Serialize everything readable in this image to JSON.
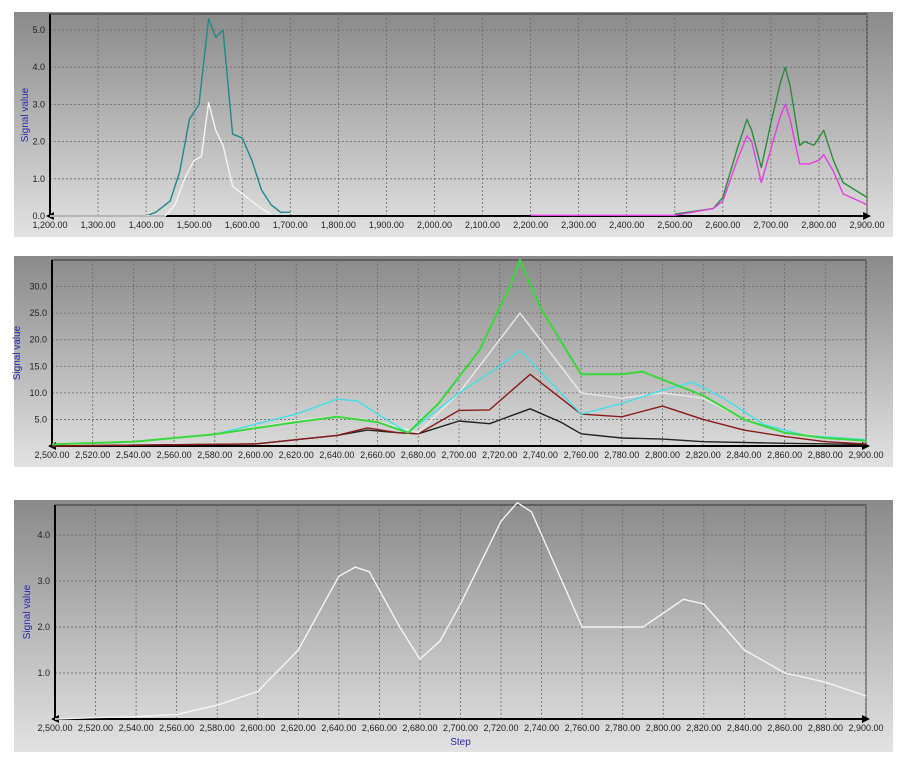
{
  "chart_data": [
    {
      "type": "line",
      "ylabel": "Signal value",
      "xlabel": "",
      "xlim": [
        1200,
        2900
      ],
      "ylim": [
        0,
        5.43
      ],
      "grid": true,
      "xticks": [
        "1,200.00",
        "1,300.00",
        "1,400.00",
        "1,500.00",
        "1,600.00",
        "1,700.00",
        "1,800.00",
        "1,900.00",
        "2,000.00",
        "2,100.00",
        "2,200.00",
        "2,300.00",
        "2,400.00",
        "2,500.00",
        "2,600.00",
        "2,700.00",
        "2,800.00",
        "2,900.00"
      ],
      "yticks": [
        "0.0",
        "1.0",
        "2.0",
        "3.0",
        "4.0",
        "5.0"
      ],
      "series": [
        {
          "color": "#1f8a8a",
          "x": [
            1400,
            1420,
            1450,
            1470,
            1490,
            1510,
            1530,
            1545,
            1560,
            1580,
            1600,
            1620,
            1640,
            1660,
            1680,
            1700
          ],
          "y": [
            0,
            0.1,
            0.4,
            1.2,
            2.6,
            3.0,
            5.3,
            4.8,
            5.0,
            2.2,
            2.1,
            1.5,
            0.7,
            0.3,
            0.1,
            0.1
          ]
        },
        {
          "color": "#f4f4f4",
          "x": [
            1200,
            1440,
            1460,
            1480,
            1500,
            1515,
            1530,
            1545,
            1560,
            1580,
            1600,
            1640,
            1660
          ],
          "y": [
            0,
            0,
            0.3,
            1.0,
            1.5,
            1.6,
            3.05,
            2.3,
            1.9,
            0.8,
            0.6,
            0.2,
            0.05
          ]
        },
        {
          "color": "#2e8b3e",
          "x": [
            2500,
            2580,
            2600,
            2630,
            2650,
            2660,
            2680,
            2700,
            2720,
            2730,
            2740,
            2760,
            2770,
            2790,
            2810,
            2830,
            2850,
            2900
          ],
          "y": [
            0.05,
            0.2,
            0.5,
            1.8,
            2.6,
            2.3,
            1.3,
            2.5,
            3.6,
            4.0,
            3.5,
            1.9,
            2.0,
            1.9,
            2.3,
            1.5,
            0.9,
            0.5
          ]
        },
        {
          "color": "#e040e0",
          "x": [
            2200,
            2500,
            2580,
            2600,
            2630,
            2650,
            2660,
            2680,
            2700,
            2720,
            2730,
            2740,
            2760,
            2780,
            2800,
            2810,
            2830,
            2850,
            2900
          ],
          "y": [
            0.02,
            0.02,
            0.2,
            0.4,
            1.5,
            2.15,
            2.0,
            0.9,
            1.8,
            2.7,
            3.0,
            2.6,
            1.4,
            1.4,
            1.5,
            1.65,
            1.2,
            0.6,
            0.3
          ]
        }
      ]
    },
    {
      "type": "line",
      "ylabel": "Signal value",
      "xlabel": "",
      "xlim": [
        2500,
        2900
      ],
      "ylim": [
        0,
        35
      ],
      "grid": true,
      "xticks": [
        "2,500.00",
        "2,520.00",
        "2,540.00",
        "2,560.00",
        "2,580.00",
        "2,600.00",
        "2,620.00",
        "2,640.00",
        "2,660.00",
        "2,680.00",
        "2,700.00",
        "2,720.00",
        "2,740.00",
        "2,760.00",
        "2,780.00",
        "2,800.00",
        "2,820.00",
        "2,840.00",
        "2,860.00",
        "2,880.00",
        "2,900.00"
      ],
      "yticks": [
        "5.0",
        "10.0",
        "15.0",
        "20.0",
        "25.0",
        "30.0"
      ],
      "series": [
        {
          "color": "#222222",
          "x": [
            2500,
            2600,
            2640,
            2655,
            2670,
            2680,
            2700,
            2715,
            2735,
            2750,
            2760,
            2780,
            2800,
            2820,
            2860,
            2900
          ],
          "y": [
            0,
            0.4,
            2,
            3,
            2.5,
            2.3,
            4.7,
            4.2,
            7,
            4.5,
            2.3,
            1.5,
            1.3,
            0.8,
            0.5,
            0.3
          ]
        },
        {
          "color": "#8b1a1a",
          "x": [
            2500,
            2600,
            2640,
            2655,
            2670,
            2680,
            2700,
            2715,
            2735,
            2750,
            2760,
            2780,
            2800,
            2820,
            2840,
            2860,
            2880,
            2900
          ],
          "y": [
            0,
            0.4,
            2,
            3.4,
            2.5,
            2.3,
            6.7,
            6.8,
            13.5,
            9,
            6,
            5.5,
            7.5,
            5,
            3,
            1.8,
            0.8,
            0.4
          ]
        },
        {
          "color": "#e8e8e8",
          "x": [
            2500,
            2540,
            2580,
            2620,
            2640,
            2660,
            2680,
            2700,
            2720,
            2730,
            2740,
            2760,
            2780,
            2800,
            2820,
            2840,
            2860,
            2900
          ],
          "y": [
            0.3,
            0.8,
            2.2,
            4.8,
            5.6,
            4.6,
            2.5,
            10,
            20,
            25,
            20,
            10,
            9,
            10,
            9,
            5,
            2.5,
            1
          ]
        },
        {
          "color": "#40e0e8",
          "x": [
            2500,
            2540,
            2580,
            2620,
            2640,
            2650,
            2660,
            2675,
            2700,
            2720,
            2730,
            2740,
            2760,
            2780,
            2800,
            2815,
            2830,
            2850,
            2870,
            2900
          ],
          "y": [
            0.3,
            0.8,
            2.2,
            6,
            8.8,
            8.5,
            6,
            2.5,
            10,
            15,
            18,
            14,
            6,
            8,
            10.5,
            12,
            9,
            4,
            2,
            1.2
          ]
        },
        {
          "color": "#3ad83a",
          "x": [
            2500,
            2540,
            2580,
            2620,
            2640,
            2660,
            2675,
            2690,
            2710,
            2725,
            2730,
            2740,
            2760,
            2780,
            2790,
            2800,
            2820,
            2840,
            2860,
            2880,
            2900
          ],
          "y": [
            0.3,
            0.8,
            2.2,
            4.5,
            5.5,
            4.5,
            2.5,
            8,
            18,
            30,
            35,
            26,
            13.5,
            13.5,
            14,
            12.5,
            9.5,
            5,
            2.5,
            1.5,
            1
          ]
        }
      ]
    },
    {
      "type": "line",
      "ylabel": "Signal value",
      "xlabel": "Step",
      "xlim": [
        2500,
        2900
      ],
      "ylim": [
        0,
        4.65
      ],
      "grid": true,
      "xticks": [
        "2,500.00",
        "2,520.00",
        "2,540.00",
        "2,560.00",
        "2,580.00",
        "2,600.00",
        "2,620.00",
        "2,640.00",
        "2,660.00",
        "2,680.00",
        "2,700.00",
        "2,720.00",
        "2,740.00",
        "2,760.00",
        "2,780.00",
        "2,800.00",
        "2,820.00",
        "2,840.00",
        "2,860.00",
        "2,880.00",
        "2,900.00"
      ],
      "yticks": [
        "1.0",
        "2.0",
        "3.0",
        "4.0"
      ],
      "series": [
        {
          "color": "#f4f4f4",
          "x": [
            2500,
            2520,
            2540,
            2560,
            2580,
            2600,
            2620,
            2640,
            2648,
            2655,
            2670,
            2680,
            2690,
            2700,
            2720,
            2728,
            2735,
            2750,
            2760,
            2780,
            2790,
            2810,
            2820,
            2840,
            2860,
            2880,
            2900
          ],
          "y": [
            0,
            0.03,
            0.05,
            0.1,
            0.3,
            0.6,
            1.5,
            3.1,
            3.3,
            3.2,
            2.0,
            1.3,
            1.7,
            2.5,
            4.3,
            4.7,
            4.5,
            3.0,
            2.0,
            2.0,
            2.0,
            2.6,
            2.5,
            1.5,
            1.0,
            0.8,
            0.5
          ]
        }
      ]
    }
  ]
}
